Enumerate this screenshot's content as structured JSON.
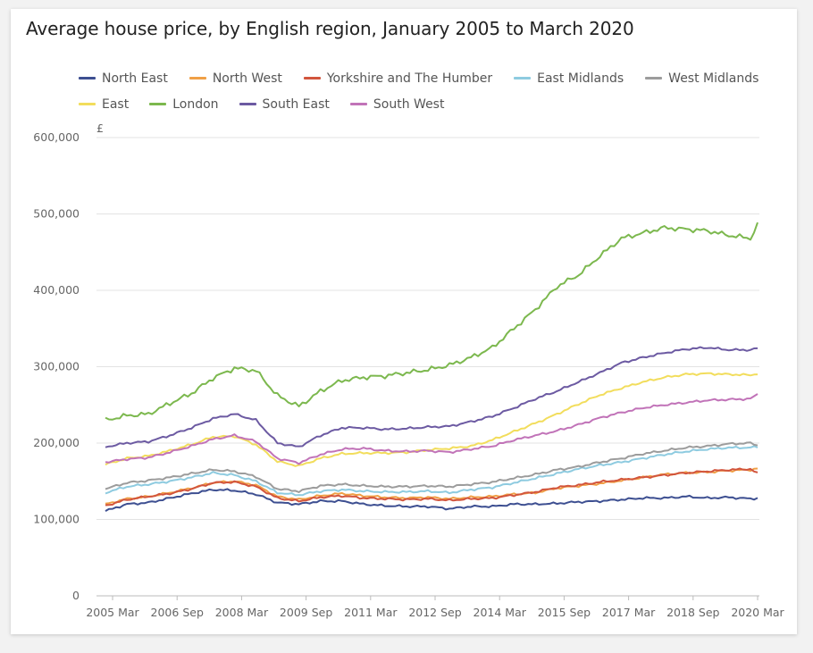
{
  "chart_data": {
    "type": "line",
    "title": "Average house price, by English region, January 2005 to March 2020",
    "ylabel": "£",
    "xlabel": "",
    "ylim": [
      0,
      600000
    ],
    "yticks": [
      "0",
      "100,000",
      "200,000",
      "300,000",
      "400,000",
      "500,000",
      "600,000"
    ],
    "xticks": [
      "2005 Mar",
      "2006 Sep",
      "2008 Mar",
      "2009 Sep",
      "2011 Mar",
      "2012 Sep",
      "2014 Mar",
      "2015 Sep",
      "2017 Mar",
      "2018 Sep",
      "2020 Mar"
    ],
    "grid": true,
    "legend_position": "top",
    "x_dates": [
      "2005-01",
      "2005-07",
      "2006-01",
      "2006-07",
      "2007-01",
      "2007-07",
      "2008-01",
      "2008-07",
      "2009-01",
      "2009-07",
      "2010-01",
      "2010-07",
      "2011-01",
      "2011-07",
      "2012-01",
      "2012-07",
      "2013-01",
      "2013-07",
      "2014-01",
      "2014-07",
      "2015-01",
      "2015-07",
      "2016-01",
      "2016-07",
      "2017-01",
      "2017-07",
      "2018-01",
      "2018-07",
      "2019-01",
      "2019-07",
      "2020-01",
      "2020-03"
    ],
    "series": [
      {
        "name": "North East",
        "color": "#3d4f91",
        "values": [
          111000,
          120000,
          122000,
          128000,
          134000,
          139000,
          138000,
          133000,
          122000,
          120000,
          124000,
          124000,
          120000,
          118000,
          117000,
          117000,
          114000,
          117000,
          117000,
          120000,
          120000,
          121000,
          123000,
          124000,
          126000,
          128000,
          128000,
          130000,
          128000,
          129000,
          127000,
          128000
        ]
      },
      {
        "name": "North West",
        "color": "#f0a046",
        "values": [
          120000,
          127000,
          130000,
          135000,
          141000,
          148000,
          150000,
          145000,
          130000,
          126000,
          131000,
          134000,
          131000,
          129000,
          128000,
          129000,
          127000,
          129000,
          130000,
          133000,
          135000,
          141000,
          144000,
          147000,
          151000,
          155000,
          159000,
          161000,
          162000,
          164000,
          165000,
          167000
        ]
      },
      {
        "name": "Yorkshire and The Humber",
        "color": "#d2553d",
        "values": [
          118000,
          126000,
          130000,
          134000,
          140000,
          148000,
          149000,
          143000,
          128000,
          124000,
          129000,
          131000,
          128000,
          127000,
          126000,
          127000,
          125000,
          127000,
          128000,
          132000,
          136000,
          142000,
          145000,
          149000,
          152000,
          155000,
          158000,
          161000,
          163000,
          165000,
          166000,
          160000
        ]
      },
      {
        "name": "East Midlands",
        "color": "#8ecbe0",
        "values": [
          135000,
          143000,
          146000,
          150000,
          155000,
          161000,
          158000,
          150000,
          135000,
          132000,
          137000,
          139000,
          137000,
          136000,
          136000,
          137000,
          135000,
          139000,
          142000,
          148000,
          154000,
          160000,
          166000,
          171000,
          175000,
          180000,
          185000,
          189000,
          192000,
          194000,
          194000,
          195000
        ]
      },
      {
        "name": "West Midlands",
        "color": "#9c9c9c",
        "values": [
          140000,
          148000,
          151000,
          155000,
          160000,
          165000,
          163000,
          156000,
          140000,
          137000,
          144000,
          146000,
          144000,
          143000,
          143000,
          144000,
          143000,
          146000,
          149000,
          154000,
          159000,
          165000,
          169000,
          175000,
          180000,
          186000,
          190000,
          194000,
          196000,
          199000,
          200000,
          197000
        ]
      },
      {
        "name": "East",
        "color": "#f2dd5c",
        "values": [
          172000,
          180000,
          183000,
          190000,
          198000,
          208000,
          209000,
          198000,
          176000,
          170000,
          180000,
          186000,
          187000,
          187000,
          188000,
          191000,
          193000,
          196000,
          204000,
          215000,
          226000,
          238000,
          251000,
          263000,
          272000,
          280000,
          286000,
          290000,
          291000,
          290000,
          289000,
          291000
        ]
      },
      {
        "name": "London",
        "color": "#7cb84e",
        "values": [
          230000,
          236000,
          238000,
          252000,
          265000,
          285000,
          298000,
          295000,
          262000,
          248000,
          268000,
          282000,
          286000,
          288000,
          292000,
          296000,
          302000,
          312000,
          325000,
          350000,
          375000,
          405000,
          420000,
          445000,
          468000,
          475000,
          482000,
          480000,
          478000,
          472000,
          468000,
          486000
        ]
      },
      {
        "name": "South East",
        "color": "#6c5aa2",
        "values": [
          195000,
          200000,
          202000,
          210000,
          220000,
          232000,
          238000,
          230000,
          200000,
          195000,
          210000,
          220000,
          220000,
          218000,
          219000,
          221000,
          222000,
          228000,
          235000,
          246000,
          258000,
          268000,
          280000,
          292000,
          305000,
          312000,
          318000,
          323000,
          325000,
          322000,
          322000,
          324000
        ]
      },
      {
        "name": "South West",
        "color": "#c173b8",
        "values": [
          175000,
          179000,
          181000,
          188000,
          196000,
          205000,
          210000,
          202000,
          180000,
          174000,
          185000,
          192000,
          193000,
          190000,
          189000,
          190000,
          188000,
          192000,
          196000,
          204000,
          210000,
          216000,
          224000,
          233000,
          240000,
          246000,
          250000,
          253000,
          256000,
          257000,
          258000,
          264000
        ]
      }
    ]
  }
}
